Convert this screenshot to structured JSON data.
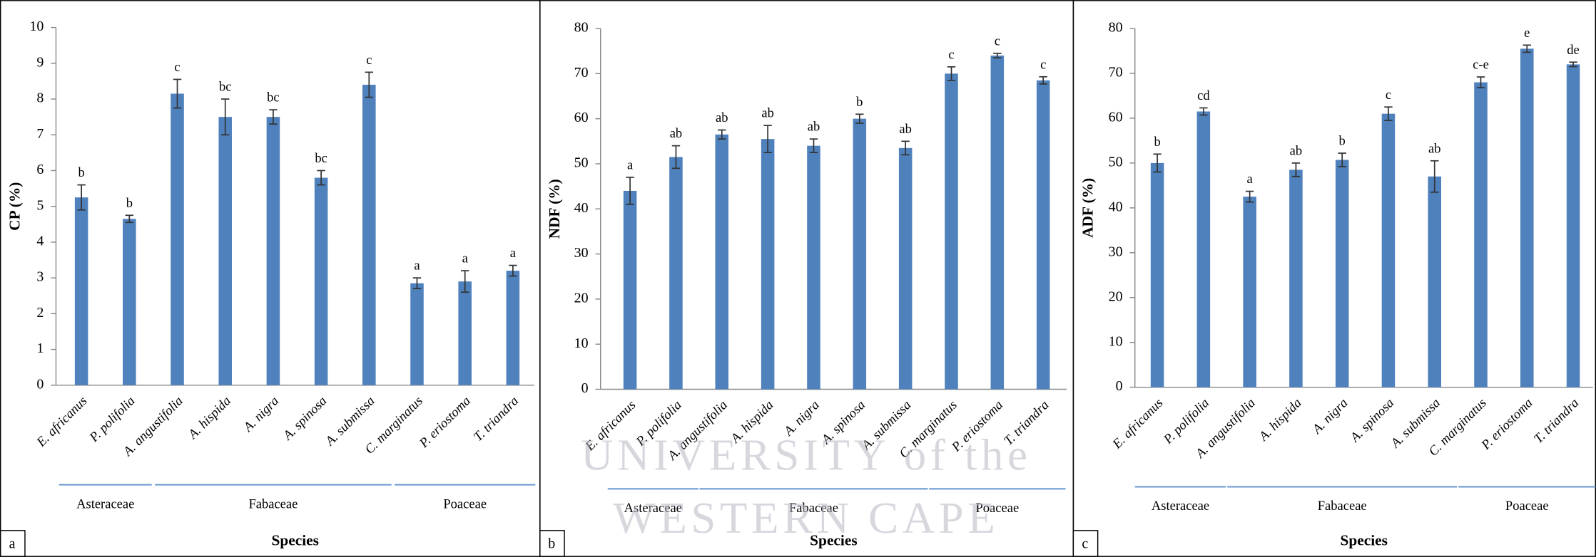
{
  "chart_data": [
    {
      "type": "bar",
      "panel_label": "a",
      "ylabel": "CP (%)",
      "xlabel": "Species",
      "categories": [
        "E. africanus",
        "P. polifolia",
        "A. angustifolia",
        "A. hispida",
        "A. nigra",
        "A. spinosa",
        "A. submissa",
        "C. marginatus",
        "P. eriostoma",
        "T. triandra"
      ],
      "values": [
        5.25,
        4.65,
        8.15,
        7.5,
        7.5,
        5.8,
        8.4,
        2.85,
        2.9,
        3.2
      ],
      "errors": [
        0.35,
        0.1,
        0.4,
        0.5,
        0.2,
        0.2,
        0.35,
        0.15,
        0.3,
        0.15
      ],
      "letters": [
        "b",
        "b",
        "c",
        "bc",
        "bc",
        "bc",
        "c",
        "a",
        "a",
        "a"
      ],
      "groups": [
        {
          "name": "Asteraceae",
          "members": 2
        },
        {
          "name": "Fabaceae",
          "members": 5
        },
        {
          "name": "Poaceae",
          "members": 3
        }
      ],
      "color": "#4f81bd",
      "ylim": [
        0,
        10
      ],
      "yticks": [
        0,
        1,
        2,
        3,
        4,
        5,
        6,
        7,
        8,
        9,
        10
      ]
    },
    {
      "type": "bar",
      "panel_label": "b",
      "ylabel": "NDF (%)",
      "xlabel": "Species",
      "categories": [
        "E. africanus",
        "P. polifolia",
        "A. angustifolia",
        "A. hispida",
        "A. nigra",
        "A. spinosa",
        "A. submissa",
        "C. marginatus",
        "P. eriostoma",
        "T. triandra"
      ],
      "values": [
        44,
        51.5,
        56.5,
        55.5,
        54,
        60,
        53.5,
        70,
        74,
        68.5
      ],
      "errors": [
        3,
        2.5,
        1,
        3,
        1.5,
        1,
        1.5,
        1.5,
        0.5,
        0.8
      ],
      "letters": [
        "a",
        "ab",
        "ab",
        "ab",
        "ab",
        "b",
        "ab",
        "c",
        "c",
        "c"
      ],
      "groups": [
        {
          "name": "Asteraceae",
          "members": 2
        },
        {
          "name": "Fabaceae",
          "members": 5
        },
        {
          "name": "Poaceae",
          "members": 3
        }
      ],
      "color": "#4f81bd",
      "ylim": [
        0,
        80
      ],
      "yticks": [
        0,
        10,
        20,
        30,
        40,
        50,
        60,
        70,
        80
      ]
    },
    {
      "type": "bar",
      "panel_label": "c",
      "ylabel": "ADF (%)",
      "xlabel": "Species",
      "categories": [
        "E. africanus",
        "P. polifolia",
        "A. angustifolia",
        "A. hispida",
        "A. nigra",
        "A. spinosa",
        "A. submissa",
        "C. marginatus",
        "P. eriostoma",
        "T. triandra"
      ],
      "values": [
        50,
        61.5,
        42.5,
        48.5,
        50.7,
        61,
        47,
        68,
        75.5,
        72
      ],
      "errors": [
        2,
        0.8,
        1.2,
        1.5,
        1.5,
        1.5,
        3.5,
        1.2,
        0.8,
        0.5
      ],
      "letters": [
        "b",
        "cd",
        "a",
        "ab",
        "b",
        "c",
        "ab",
        "c-e",
        "e",
        "de"
      ],
      "groups": [
        {
          "name": "Asteraceae",
          "members": 2
        },
        {
          "name": "Fabaceae",
          "members": 5
        },
        {
          "name": "Poaceae",
          "members": 3
        }
      ],
      "color": "#4f81bd",
      "ylim": [
        0,
        80
      ],
      "yticks": [
        0,
        10,
        20,
        30,
        40,
        50,
        60,
        70,
        80
      ]
    }
  ],
  "watermark": [
    "UNIVERSITY of the",
    "WESTERN CAPE"
  ]
}
